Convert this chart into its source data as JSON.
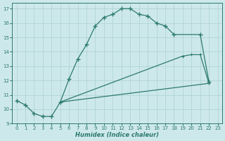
{
  "xlabel": "Humidex (Indice chaleur)",
  "bg_color": "#cde8eb",
  "grid_color": "#b0d4d8",
  "line_color": "#2d7a6e",
  "xlim": [
    -0.5,
    23.5
  ],
  "ylim": [
    9.0,
    17.4
  ],
  "xticks": [
    0,
    1,
    2,
    3,
    4,
    5,
    6,
    7,
    8,
    9,
    10,
    11,
    12,
    13,
    14,
    15,
    16,
    17,
    18,
    19,
    20,
    21,
    22,
    23
  ],
  "yticks": [
    9,
    10,
    11,
    12,
    13,
    14,
    15,
    16,
    17
  ],
  "line1_x": [
    0,
    1,
    2,
    3,
    4,
    5,
    6,
    7,
    8,
    9,
    10,
    11,
    12,
    13,
    14,
    15,
    16,
    17,
    18,
    21,
    22
  ],
  "line1_y": [
    10.6,
    10.3,
    9.7,
    9.5,
    9.5,
    10.5,
    12.1,
    13.5,
    14.5,
    15.8,
    16.4,
    16.6,
    17.0,
    17.0,
    16.6,
    16.5,
    16.0,
    15.8,
    15.2,
    15.2,
    11.9
  ],
  "line2_x": [
    5,
    22
  ],
  "line2_y": [
    10.5,
    11.8
  ],
  "line3_x": [
    5,
    19,
    20,
    21,
    22
  ],
  "line3_y": [
    10.5,
    13.7,
    13.8,
    13.8,
    11.8
  ]
}
